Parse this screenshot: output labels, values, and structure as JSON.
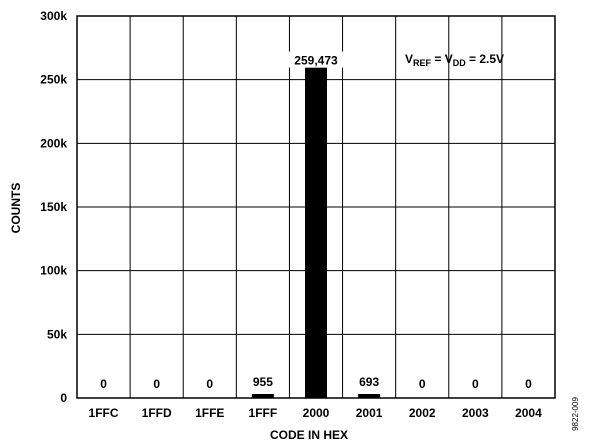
{
  "chart_data": {
    "type": "bar",
    "categories": [
      "1FFC",
      "1FFD",
      "1FFE",
      "1FFF",
      "2000",
      "2001",
      "2002",
      "2003",
      "2004"
    ],
    "values": [
      0,
      0,
      0,
      955,
      259473,
      693,
      0,
      0,
      0
    ],
    "data_labels": [
      "0",
      "0",
      "0",
      "955",
      "259,473",
      "693",
      "0",
      "0",
      "0"
    ],
    "xlabel": "CODE IN HEX",
    "ylabel": "COUNTS",
    "ylim": [
      0,
      300000
    ],
    "yticks": [
      0,
      50000,
      100000,
      150000,
      200000,
      250000,
      300000
    ],
    "ytick_labels": [
      "0",
      "50k",
      "100k",
      "150k",
      "200k",
      "250k",
      "300k"
    ],
    "grid": true,
    "bar_color": "#000000",
    "annotation": {
      "v1": "V",
      "v1_sub": "REF",
      "eq1": " = V",
      "v2_sub": "DD",
      "eq2": " = 2.5V"
    }
  },
  "figure_id": "9822-009"
}
